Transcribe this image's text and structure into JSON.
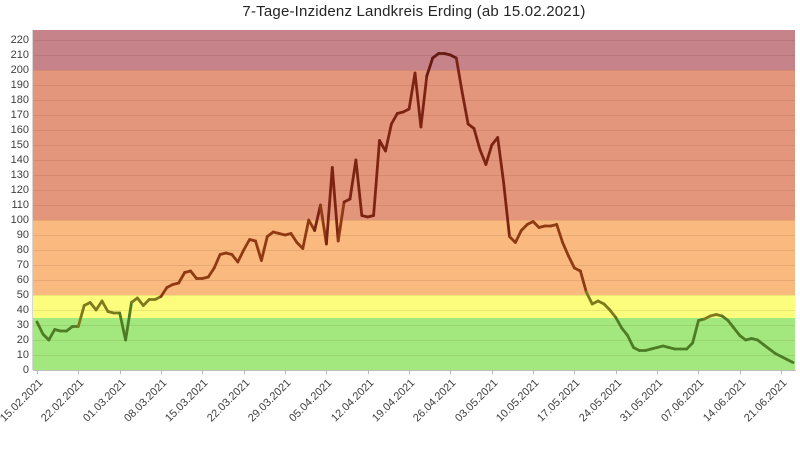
{
  "title": "7-Tage-Inzidenz Landkreis Erding (ab 15.02.2021)",
  "chart_data": {
    "type": "line",
    "title": "7-Tage-Inzidenz Landkreis Erding (ab 15.02.2021)",
    "xlabel": "",
    "ylabel": "",
    "x_start_date": "15.02.2021",
    "x_frequency": "daily",
    "x_tick_labels": [
      "15.02.2021",
      "22.02.2021",
      "01.03.2021",
      "08.03.2021",
      "15.03.2021",
      "22.03.2021",
      "29.03.2021",
      "05.04.2021",
      "12.04.2021",
      "19.04.2021",
      "26.04.2021",
      "03.05.2021",
      "10.05.2021",
      "17.05.2021",
      "24.05.2021",
      "31.05.2021",
      "07.06.2021",
      "14.06.2021",
      "21.06.2021"
    ],
    "y_ticks": [
      0,
      10,
      20,
      30,
      40,
      50,
      60,
      70,
      80,
      90,
      100,
      110,
      120,
      130,
      140,
      150,
      160,
      170,
      180,
      190,
      200,
      210,
      220
    ],
    "ylim": [
      0,
      226.7
    ],
    "grid": "horizontal, every 10 units",
    "legend_position": "none",
    "zones": [
      {
        "label": "green",
        "range": [
          0,
          35
        ],
        "band_color": "#a3e87e",
        "line_color": "#4e7c24"
      },
      {
        "label": "yellow",
        "range": [
          35,
          50
        ],
        "band_color": "#fdfd7d",
        "line_color": "#7d7a1e"
      },
      {
        "label": "orange",
        "range": [
          50,
          100
        ],
        "band_color": "#f9b97f",
        "line_color": "#8f3a12"
      },
      {
        "label": "red",
        "range": [
          100,
          200
        ],
        "band_color": "#e4967c",
        "line_color": "#7c2413"
      },
      {
        "label": "dark-red",
        "range": [
          200,
          226.7
        ],
        "band_color": "#c6848a",
        "line_color": "#661a11"
      }
    ],
    "series": [
      {
        "name": "7-Tage-Inzidenz",
        "values": [
          32,
          24,
          20,
          27,
          26,
          26,
          29,
          29,
          43,
          45,
          40,
          46,
          39,
          38,
          38,
          20,
          45,
          48,
          43,
          47,
          47,
          49,
          55,
          57,
          58,
          65,
          66,
          61,
          61,
          62,
          68,
          77,
          78,
          77,
          72,
          80,
          87,
          86,
          73,
          89,
          92,
          91,
          90,
          91,
          85,
          81,
          100,
          93,
          110,
          84,
          135,
          86,
          112,
          114,
          140,
          103,
          102,
          103,
          153,
          146,
          164,
          171,
          172,
          174,
          198,
          162,
          196,
          208,
          211,
          211,
          210,
          208,
          185,
          164,
          161,
          147,
          137,
          150,
          155,
          125,
          89,
          85,
          93,
          97,
          99,
          95,
          96,
          96,
          97,
          85,
          76,
          68,
          66,
          52,
          44,
          46,
          44,
          40,
          35,
          28,
          23,
          15,
          13,
          13,
          14,
          15,
          16,
          15,
          14,
          14,
          14,
          18,
          33,
          34,
          36,
          37,
          36,
          33,
          28,
          23,
          20,
          21,
          20,
          17,
          14,
          11,
          9,
          7,
          5
        ]
      }
    ]
  }
}
